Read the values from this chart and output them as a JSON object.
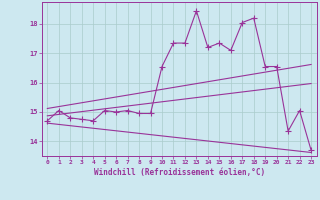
{
  "xlabel": "Windchill (Refroidissement éolien,°C)",
  "xlim": [
    -0.5,
    23.5
  ],
  "ylim": [
    13.5,
    18.75
  ],
  "yticks": [
    14,
    15,
    16,
    17,
    18
  ],
  "xticks": [
    0,
    1,
    2,
    3,
    4,
    5,
    6,
    7,
    8,
    9,
    10,
    11,
    12,
    13,
    14,
    15,
    16,
    17,
    18,
    19,
    20,
    21,
    22,
    23
  ],
  "bg_color": "#cde8f0",
  "line_color": "#993399",
  "grid_color": "#aacccc",
  "main_data_x": [
    0,
    1,
    2,
    3,
    4,
    5,
    6,
    7,
    8,
    9,
    10,
    11,
    12,
    13,
    14,
    15,
    16,
    17,
    18,
    19,
    20,
    21,
    22,
    23
  ],
  "main_data_y": [
    14.7,
    15.05,
    14.8,
    14.75,
    14.7,
    15.05,
    15.0,
    15.05,
    14.95,
    14.95,
    16.55,
    17.35,
    17.35,
    18.45,
    17.2,
    17.35,
    17.1,
    18.05,
    18.2,
    16.55,
    16.55,
    14.35,
    15.05,
    13.7
  ],
  "upper_line_x": [
    0,
    23
  ],
  "upper_line_y": [
    15.12,
    16.62
  ],
  "lower_line_x": [
    0,
    23
  ],
  "lower_line_y": [
    14.62,
    13.62
  ],
  "mid_line_x": [
    0,
    23
  ],
  "mid_line_y": [
    14.87,
    15.97
  ]
}
